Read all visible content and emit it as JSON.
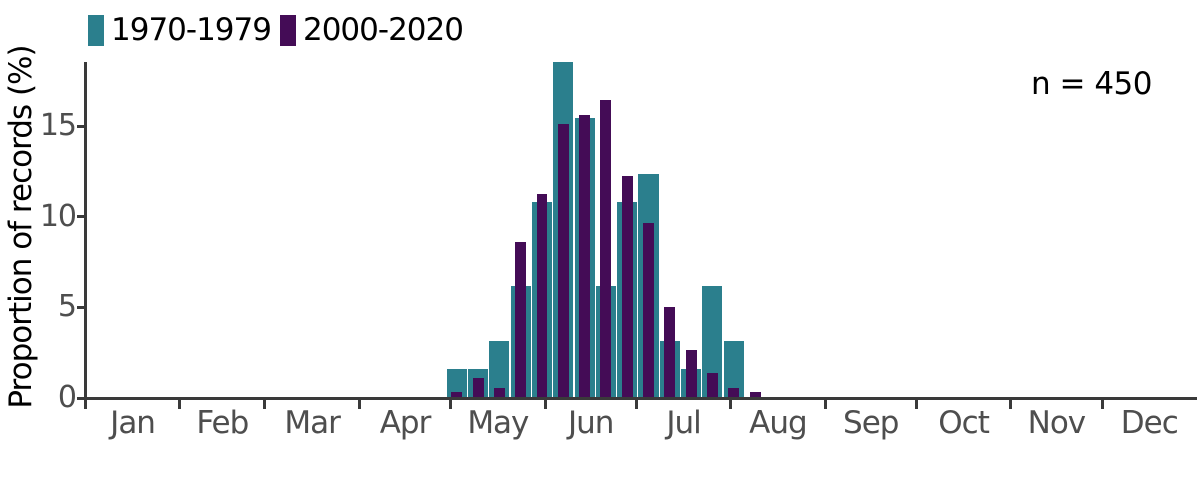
{
  "chart_data": {
    "type": "bar",
    "title": "",
    "xlabel": "",
    "ylabel": "Proportion of records (%)",
    "annotation": "n = 450",
    "legend_position": "top-left",
    "grid": false,
    "background_color": "#ffffff",
    "axis_color": "#3a3a3a",
    "tick_label_color": "#4e4e4e",
    "ylim": [
      0,
      18.5
    ],
    "yticks": [
      0,
      5,
      10,
      15
    ],
    "x_axis": {
      "kind": "day-of-year",
      "range_days": [
        1,
        365
      ],
      "month_labels": [
        "Jan",
        "Feb",
        "Mar",
        "Apr",
        "May",
        "Jun",
        "Jul",
        "Aug",
        "Sep",
        "Oct",
        "Nov",
        "Dec"
      ],
      "month_start_day": [
        1,
        32,
        60,
        91,
        121,
        152,
        182,
        213,
        244,
        274,
        305,
        335
      ],
      "month_length": [
        31,
        28,
        31,
        30,
        31,
        30,
        31,
        31,
        30,
        31,
        30,
        31
      ]
    },
    "bins": {
      "unit": "week",
      "center_day_of_year": [
        123,
        130,
        137,
        144,
        151,
        158,
        165,
        172,
        179,
        186,
        193,
        200,
        207,
        214,
        221
      ]
    },
    "series": [
      {
        "name": "1970-1979",
        "color": "#2b7f8d",
        "bar_width_days": 6.6,
        "values": [
          1.54,
          1.54,
          3.08,
          6.15,
          10.77,
          18.46,
          15.38,
          6.15,
          10.77,
          12.31,
          3.08,
          1.54,
          6.15,
          3.08,
          0
        ]
      },
      {
        "name": "2000-2020",
        "color": "#440c56",
        "bar_width_days": 3.6,
        "values": [
          0.26,
          1.04,
          0.52,
          8.57,
          11.17,
          15.06,
          15.58,
          16.36,
          12.21,
          9.61,
          4.94,
          2.6,
          1.3,
          0.52,
          0.26
        ]
      }
    ]
  }
}
